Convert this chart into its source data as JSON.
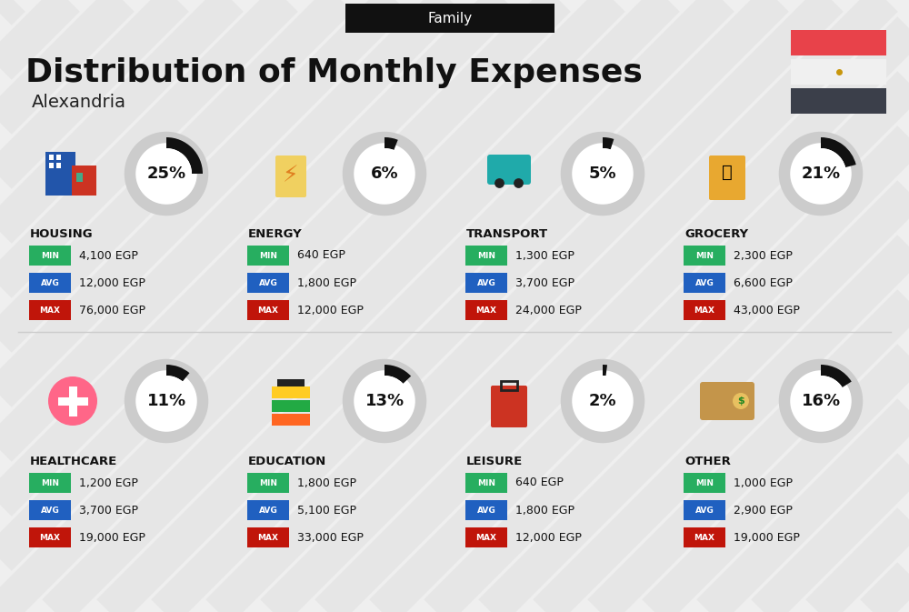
{
  "title": "Distribution of Monthly Expenses",
  "subtitle": "Alexandria",
  "header_label": "Family",
  "bg_color": "#efefef",
  "header_bg": "#111111",
  "header_text_color": "#ffffff",
  "title_color": "#111111",
  "subtitle_color": "#222222",
  "categories_row1": [
    "HOUSING",
    "ENERGY",
    "TRANSPORT",
    "GROCERY"
  ],
  "categories_row2": [
    "HEALTHCARE",
    "EDUCATION",
    "LEISURE",
    "OTHER"
  ],
  "percentages_row1": [
    25,
    6,
    5,
    21
  ],
  "percentages_row2": [
    11,
    13,
    2,
    16
  ],
  "min_row1": [
    "4,100 EGP",
    "640 EGP",
    "1,300 EGP",
    "2,300 EGP"
  ],
  "avg_row1": [
    "12,000 EGP",
    "1,800 EGP",
    "3,700 EGP",
    "6,600 EGP"
  ],
  "max_row1": [
    "76,000 EGP",
    "12,000 EGP",
    "24,000 EGP",
    "43,000 EGP"
  ],
  "min_row2": [
    "1,200 EGP",
    "1,800 EGP",
    "640 EGP",
    "1,000 EGP"
  ],
  "avg_row2": [
    "3,700 EGP",
    "5,100 EGP",
    "1,800 EGP",
    "2,900 EGP"
  ],
  "max_row2": [
    "19,000 EGP",
    "33,000 EGP",
    "12,000 EGP",
    "19,000 EGP"
  ],
  "min_color": "#27ae60",
  "avg_color": "#2060c0",
  "max_color": "#c0150a",
  "donut_dark": "#111111",
  "donut_gray": "#cccccc",
  "stripe_color": "#e0e0e0",
  "egypt_red": "#e8424a",
  "egypt_white": "#ffffff",
  "egypt_dark": "#3b3f4a",
  "fig_w": 10.0,
  "fig_h": 6.73
}
